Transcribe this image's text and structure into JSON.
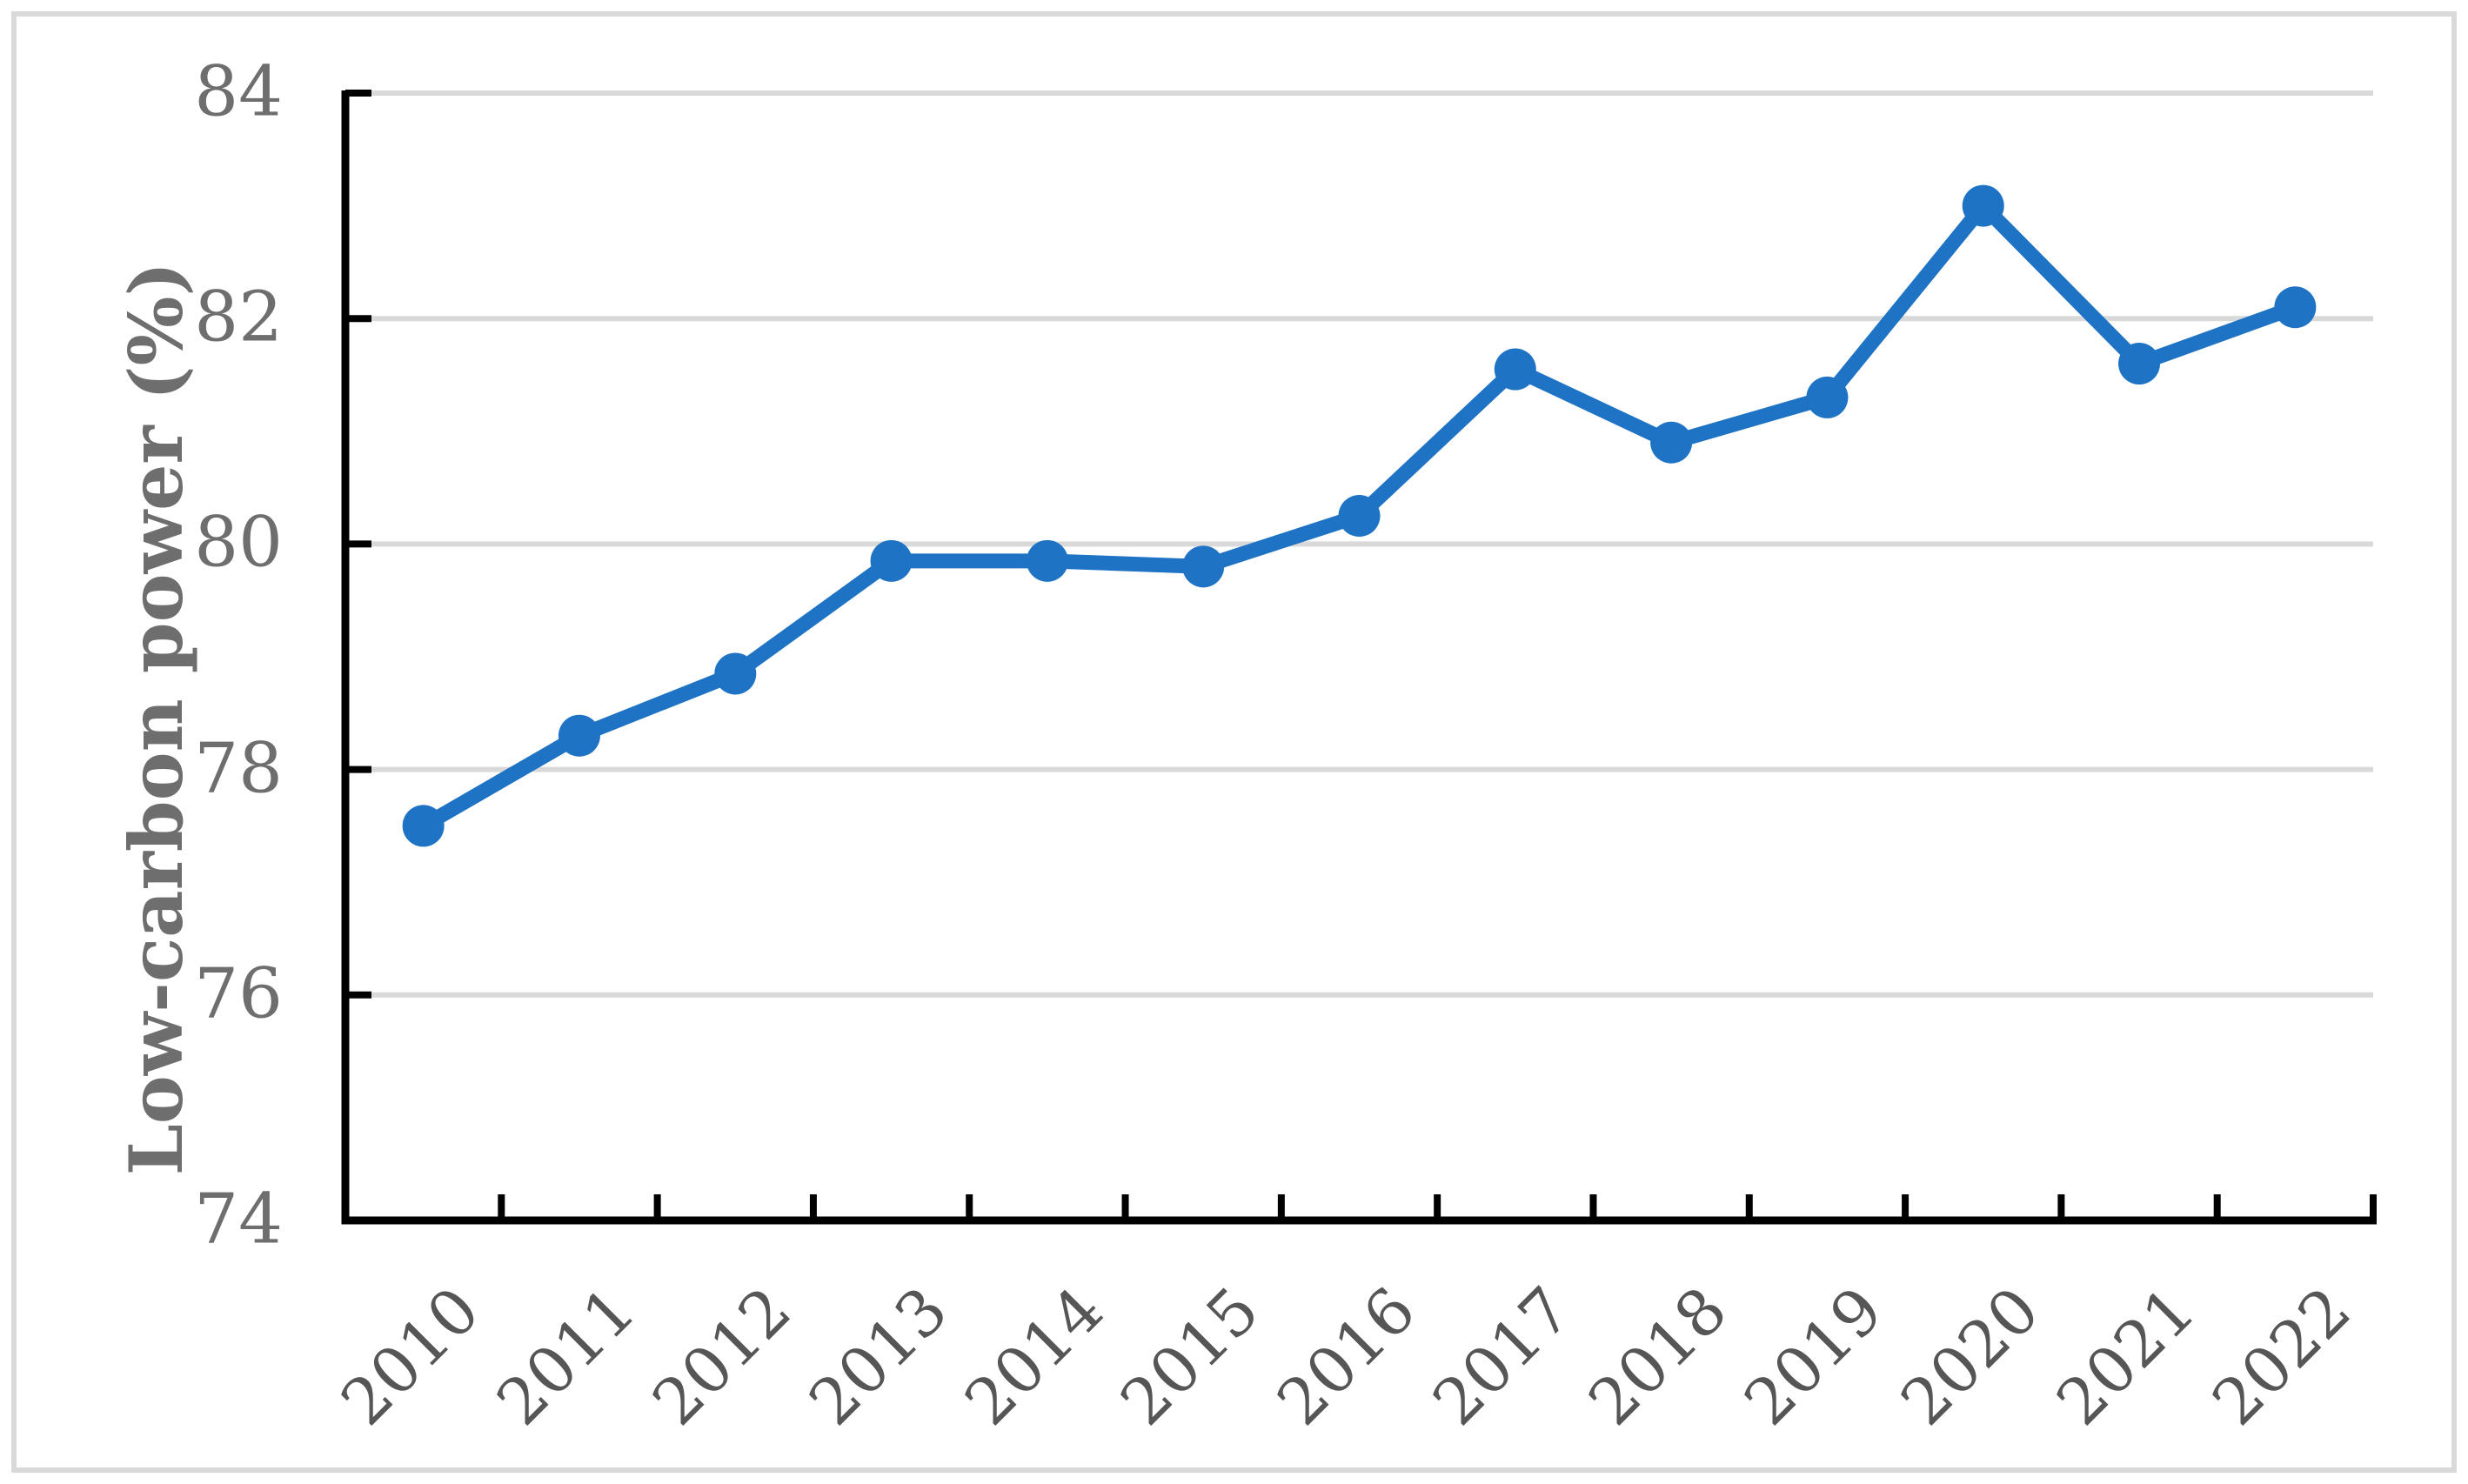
{
  "figure": {
    "background": "#FFFFFF",
    "border_color": "#D9D9D9"
  },
  "chart_data": {
    "type": "line",
    "title": "",
    "xlabel": "",
    "ylabel": "Low-carbon power (%)",
    "categories": [
      "2010",
      "2011",
      "2012",
      "2013",
      "2014",
      "2015",
      "2016",
      "2017",
      "2018",
      "2019",
      "2020",
      "2021",
      "2022"
    ],
    "series": [
      {
        "name": "Low-carbon power",
        "values": [
          77.5,
          78.3,
          78.85,
          79.85,
          79.85,
          79.8,
          80.25,
          81.55,
          80.9,
          81.3,
          83.0,
          81.6,
          82.1
        ]
      }
    ],
    "ylim": [
      74,
      84
    ],
    "yticks": [
      74,
      76,
      78,
      80,
      82,
      84
    ],
    "grid": "horizontal",
    "legend": "none",
    "marker": "circle",
    "colors": {
      "series_line": "#1E73C4",
      "gridline": "#D9D9D9",
      "axis_line": "#000000",
      "y_tick_label": "#6E6E6E",
      "x_tick_label": "#565656",
      "axis_title": "#6E6E6E"
    }
  }
}
